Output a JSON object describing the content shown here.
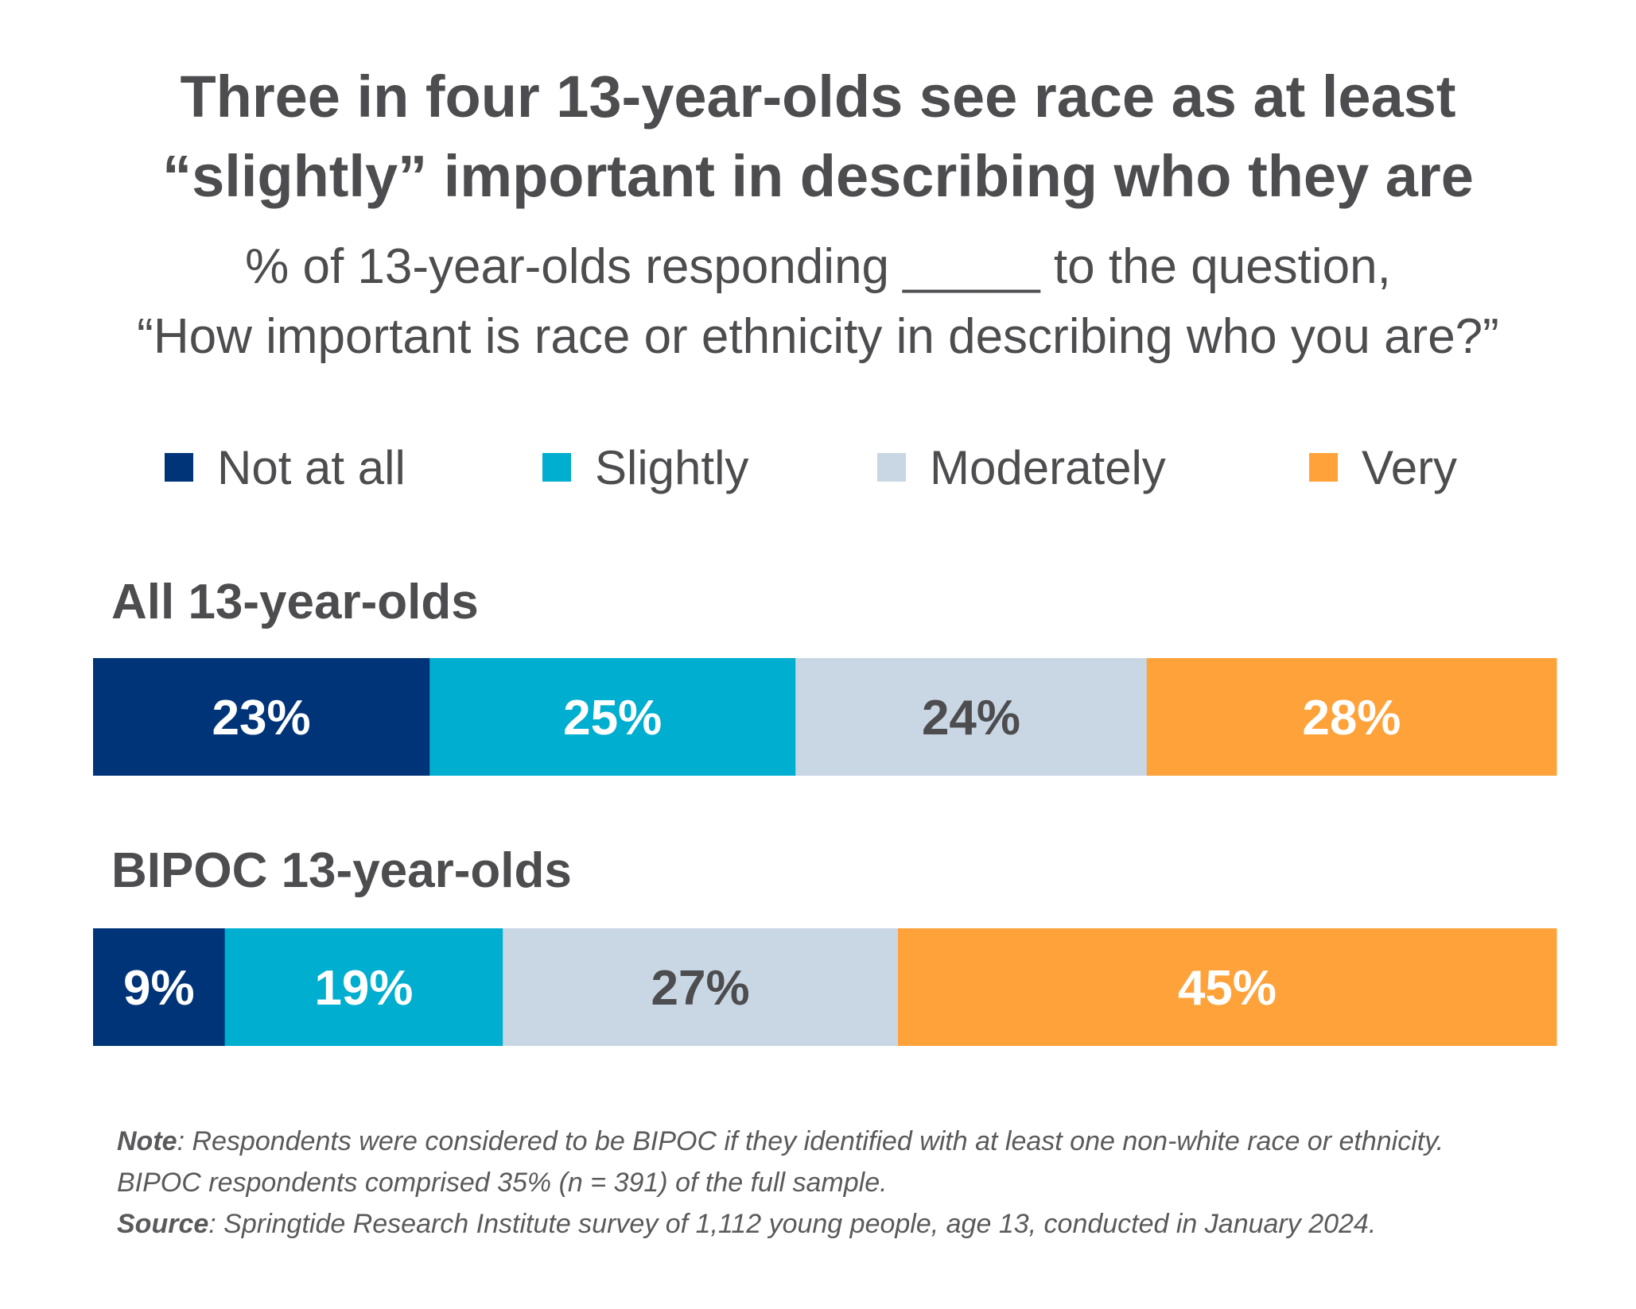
{
  "title": {
    "line1": "Three in four 13-year-olds see race as at least",
    "line2": "“slightly” important in describing who they are"
  },
  "subtitle": {
    "line1": "% of 13-year-olds responding _____ to the question,",
    "line2": "“How important is race or ethnicity in describing who you are?”"
  },
  "chart_data": {
    "type": "bar",
    "orientation": "horizontal-stacked-100",
    "categories": [
      "All 13-year-olds",
      "BIPOC 13-year-olds"
    ],
    "series": [
      {
        "name": "Not at all",
        "values": [
          23,
          9
        ],
        "labels": [
          "23%",
          "9%"
        ],
        "color": "#003478",
        "label_color": "#ffffff"
      },
      {
        "name": "Slightly",
        "values": [
          25,
          19
        ],
        "labels": [
          "25%",
          "19%"
        ],
        "color": "#00aecf",
        "label_color": "#ffffff"
      },
      {
        "name": "Moderately",
        "values": [
          24,
          27
        ],
        "labels": [
          "24%",
          "27%"
        ],
        "color": "#c9d7e4",
        "label_color": "#4d4d4f"
      },
      {
        "name": "Very",
        "values": [
          28,
          45
        ],
        "labels": [
          "28%",
          "45%"
        ],
        "color": "#ffa23a",
        "label_color": "#ffffff"
      }
    ],
    "xlim": [
      0,
      100
    ],
    "legend": "top",
    "grid": false
  },
  "note": {
    "note_label": "Note",
    "note_text": ": Respondents were considered to be BIPOC if they identified with at least one non-white race or ethnicity.",
    "note_line2": "BIPOC respondents comprised 35% (n = 391) of the full sample.",
    "source_label": "Source",
    "source_text": ": Springtide Research Institute survey of 1,112 young people, age 13, conducted in January 2024."
  }
}
